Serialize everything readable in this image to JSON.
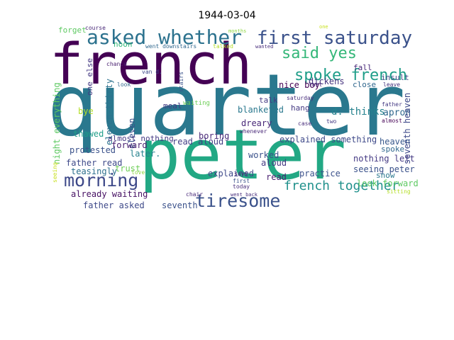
{
  "chart_data": {
    "type": "wordcloud",
    "title": "1944-03-04",
    "words": [
      {
        "text": "quarter",
        "color": "#2a788e"
      },
      {
        "text": "french",
        "color": "#440154"
      },
      {
        "text": "peter",
        "color": "#22a884"
      },
      {
        "text": "first saturday",
        "color": "#3b528b"
      },
      {
        "text": "asked whether",
        "color": "#2c728e"
      },
      {
        "text": "said yes",
        "color": "#35b779"
      },
      {
        "text": "spoke french",
        "color": "#1f9e89"
      },
      {
        "text": "morning",
        "color": "#3e4989"
      },
      {
        "text": "tiresome",
        "color": "#3b528b"
      },
      {
        "text": "french together",
        "color": "#21918c"
      },
      {
        "text": "forget",
        "color": "#5ec962"
      },
      {
        "text": "course",
        "color": "#482878"
      },
      {
        "text": "noon",
        "color": "#35b779"
      },
      {
        "text": "months",
        "color": "#8fd744"
      },
      {
        "text": "one",
        "color": "#c8e020"
      },
      {
        "text": "fall",
        "color": "#482878"
      },
      {
        "text": "insult",
        "color": "#3e4989"
      },
      {
        "text": "close",
        "color": "#31688e"
      },
      {
        "text": "talk",
        "color": "#443983"
      },
      {
        "text": "saturday",
        "color": "#472d7b"
      },
      {
        "text": "hang",
        "color": "#443983"
      },
      {
        "text": "d. thinks",
        "color": "#26828e"
      },
      {
        "text": "blanketed",
        "color": "#2a788e"
      },
      {
        "text": "dreary",
        "color": "#482878"
      },
      {
        "text": "apron",
        "color": "#31688e"
      },
      {
        "text": "seventh heaven",
        "color": "#3e4989"
      },
      {
        "text": "night everything",
        "color": "#5ec962"
      },
      {
        "text": "eleven-thirty",
        "color": "#2c728e"
      },
      {
        "text": "eleven",
        "color": "#3b528b"
      },
      {
        "text": "one else",
        "color": "#443983"
      },
      {
        "text": "bye",
        "color": "#b5de2b"
      },
      {
        "text": "thawed",
        "color": "#1f9e89"
      },
      {
        "text": "protested",
        "color": "#3b528b"
      },
      {
        "text": "almost nothing",
        "color": "#443983"
      },
      {
        "text": "later.",
        "color": "#26828e"
      },
      {
        "text": "forward",
        "color": "#481f70"
      },
      {
        "text": "read aloud",
        "color": "#433e85"
      },
      {
        "text": "boring",
        "color": "#482878"
      },
      {
        "text": "explained something",
        "color": "#3e4989"
      },
      {
        "text": "heaven",
        "color": "#38588c"
      },
      {
        "text": "spoke",
        "color": "#31688e"
      },
      {
        "text": "nothing left",
        "color": "#443983"
      },
      {
        "text": "seeing peter",
        "color": "#3b528b"
      },
      {
        "text": "father read",
        "color": "#3e4989"
      },
      {
        "text": "teasingly",
        "color": "#2d708e"
      },
      {
        "text": "trust",
        "color": "#6ece58"
      },
      {
        "text": "explained",
        "color": "#3e4989"
      },
      {
        "text": "worked",
        "color": "#3b528b"
      },
      {
        "text": "aloud",
        "color": "#443983"
      },
      {
        "text": "read",
        "color": "#481f70"
      },
      {
        "text": "practice",
        "color": "#3b528b"
      },
      {
        "text": "nice boy",
        "color": "#440154"
      },
      {
        "text": "dickens",
        "color": "#46337e"
      },
      {
        "text": "already waiting",
        "color": "#471164"
      },
      {
        "text": "father asked",
        "color": "#3e4989"
      },
      {
        "text": "seventh",
        "color": "#3b528b"
      },
      {
        "text": "look forward",
        "color": "#5ec962"
      },
      {
        "text": "snow",
        "color": "#2a788e"
      },
      {
        "text": "waiting",
        "color": "#6ece58"
      },
      {
        "text": "meal",
        "color": "#443983"
      },
      {
        "text": "chair",
        "color": "#482878"
      },
      {
        "text": "went back",
        "color": "#472d7b"
      },
      {
        "text": "sitting",
        "color": "#b5de2b"
      },
      {
        "text": "stairs",
        "color": "#3b528b"
      },
      {
        "text": "went downstairs",
        "color": "#31688e"
      },
      {
        "text": "talked",
        "color": "#b5de2b"
      },
      {
        "text": "wanted",
        "color": "#472d7b"
      },
      {
        "text": "chance",
        "color": "#481f70"
      },
      {
        "text": "look",
        "color": "#31688e"
      },
      {
        "text": "last",
        "color": "#482878"
      },
      {
        "text": "father",
        "color": "#443983"
      },
      {
        "text": "almost",
        "color": "#440154"
      },
      {
        "text": "love",
        "color": "#8fd744"
      },
      {
        "text": "seeing",
        "color": "#c8e020"
      },
      {
        "text": "whenever",
        "color": "#482878"
      },
      {
        "text": "case",
        "color": "#472d7b"
      },
      {
        "text": "two",
        "color": "#443983"
      },
      {
        "text": "leave",
        "color": "#46337e"
      },
      {
        "text": "van d.",
        "color": "#3e4989"
      },
      {
        "text": "says",
        "color": "#482878"
      },
      {
        "text": "first",
        "color": "#3b528b"
      },
      {
        "text": "today",
        "color": "#472d7b"
      }
    ]
  }
}
